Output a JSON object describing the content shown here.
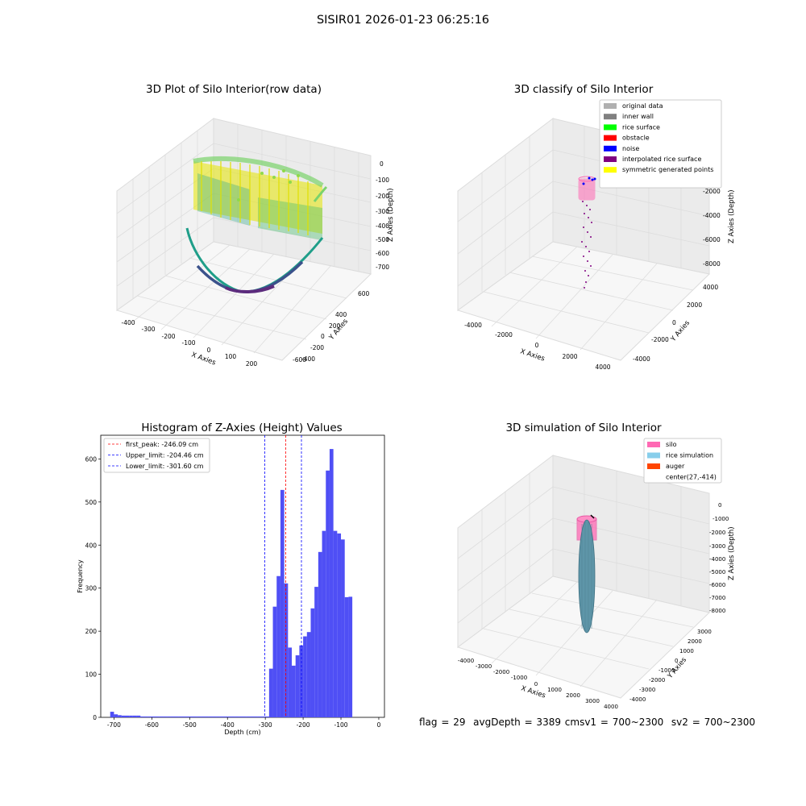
{
  "suptitle": "SISIR01 2026-01-23 06:25:16",
  "footer": {
    "flag": "flag = 29",
    "avg": "avgDepth = 3389 cmsv1 = 700~2300",
    "sv2": "sv2 = 700~2300"
  },
  "charts": {
    "raw": {
      "title": "3D Plot of Silo Interior(row data)",
      "x_label": "X Axies",
      "y_label": "Y Axies",
      "z_label": "Z Axies (Depth)",
      "x_ticks": [
        "-400",
        "-300",
        "-200",
        "-100",
        "0",
        "100",
        "200"
      ],
      "y_ticks": [
        "600",
        "400",
        "200",
        "0",
        "-200",
        "-400",
        "-600"
      ],
      "z_ticks": [
        "0",
        "-100",
        "-200",
        "-300",
        "-400",
        "-500",
        "-600",
        "-700"
      ]
    },
    "classify": {
      "title": "3D classify of Silo Interior",
      "x_label": "X Axies",
      "y_label": "Y Axies",
      "z_label": "Z Axies (Depth)",
      "x_ticks": [
        "-4000",
        "-2000",
        "0",
        "2000",
        "4000"
      ],
      "y_ticks": [
        "4000",
        "2000",
        "0",
        "-2000",
        "-4000"
      ],
      "z_ticks": [
        "0",
        "-2000",
        "-4000",
        "-6000",
        "-8000"
      ],
      "legend": [
        {
          "label": "original data",
          "color": "#b0b0b0"
        },
        {
          "label": "inner wall",
          "color": "#808080"
        },
        {
          "label": "rice surface",
          "color": "#00ff00"
        },
        {
          "label": "obstacle",
          "color": "#ff0000"
        },
        {
          "label": "noise",
          "color": "#0000ff"
        },
        {
          "label": "interpolated rice surface",
          "color": "#800080"
        },
        {
          "label": "symmetric generated points",
          "color": "#ffff00"
        }
      ]
    },
    "histogram": {
      "title": "Histogram of Z-Axies (Height) Values",
      "x_label": "Depth (cm)",
      "y_label": "Frequency",
      "x_ticks": [
        "-700",
        "-600",
        "-500",
        "-400",
        "-300",
        "-200",
        "-100",
        "0"
      ],
      "y_ticks": [
        "0",
        "100",
        "200",
        "300",
        "400",
        "500",
        "600"
      ],
      "legend": [
        {
          "label": "first_peak: -246.09 cm",
          "color": "#ff0000"
        },
        {
          "label": "Upper_limit: -204.46 cm",
          "color": "#0000ff"
        },
        {
          "label": "Lower_limit: -301.60 cm",
          "color": "#0000ff"
        }
      ]
    },
    "simulation": {
      "title": "3D simulation of Silo Interior",
      "x_label": "X Axies",
      "y_label": "Y Axies",
      "z_label": "Z Axies (Depth)",
      "x_ticks": [
        "-4000",
        "-3000",
        "-2000",
        "-1000",
        "0",
        "1000",
        "2000",
        "3000",
        "4000"
      ],
      "y_ticks": [
        "3000",
        "2000",
        "1000",
        "0",
        "-1000",
        "-2000",
        "-3000",
        "-4000"
      ],
      "z_ticks": [
        "0",
        "-1000",
        "-2000",
        "-3000",
        "-4000",
        "-5000",
        "-6000",
        "-7000",
        "-8000"
      ],
      "legend": [
        {
          "label": "silo",
          "color": "#ff69b4"
        },
        {
          "label": "rice simulation",
          "color": "#87ceeb"
        },
        {
          "label": "auger",
          "color": "#ff4500"
        },
        {
          "label": "center(27,-414)",
          "color": ""
        }
      ]
    }
  },
  "chart_data": {
    "type": "bar",
    "title": "Histogram of Z-Axies (Height) Values",
    "xlabel": "Depth (cm)",
    "ylabel": "Frequency",
    "xlim": [
      -735,
      15
    ],
    "ylim": [
      0,
      655
    ],
    "bin_width": 10,
    "bin_starts": [
      -710,
      -700,
      -690,
      -680,
      -670,
      -660,
      -650,
      -640,
      -630,
      -620,
      -610,
      -600,
      -590,
      -580,
      -570,
      -560,
      -550,
      -540,
      -530,
      -520,
      -510,
      -500,
      -490,
      -480,
      -470,
      -460,
      -450,
      -440,
      -430,
      -420,
      -410,
      -400,
      -390,
      -380,
      -370,
      -360,
      -350,
      -340,
      -330,
      -320,
      -310,
      -300,
      -290,
      -280,
      -270,
      -260,
      -250,
      -240,
      -230,
      -220,
      -210,
      -200,
      -190,
      -180,
      -170,
      -160,
      -150,
      -140,
      -130,
      -120,
      -110,
      -100,
      -90,
      -80,
      -70,
      -60,
      -50,
      -40,
      -30,
      -20,
      -10
    ],
    "values": [
      13,
      7,
      5,
      4,
      4,
      4,
      4,
      4,
      2,
      2,
      2,
      2,
      2,
      2,
      2,
      2,
      2,
      2,
      2,
      2,
      2,
      2,
      2,
      2,
      2,
      2,
      2,
      2,
      2,
      2,
      2,
      2,
      2,
      2,
      2,
      2,
      2,
      2,
      2,
      2,
      2,
      2,
      113,
      257,
      328,
      528,
      311,
      162,
      120,
      144,
      167,
      188,
      198,
      253,
      303,
      384,
      433,
      573,
      623,
      433,
      427,
      413,
      279,
      280,
      0,
      0,
      0,
      0,
      0,
      0,
      0
    ],
    "vlines": [
      {
        "label": "first_peak: -246.09 cm",
        "x": -246.09,
        "color": "#ff0000"
      },
      {
        "label": "Upper_limit: -204.46 cm",
        "x": -204.46,
        "color": "#0000ff"
      },
      {
        "label": "Lower_limit: -301.60 cm",
        "x": -301.6,
        "color": "#0000ff"
      }
    ],
    "bar_color": "#4f4ff5"
  }
}
